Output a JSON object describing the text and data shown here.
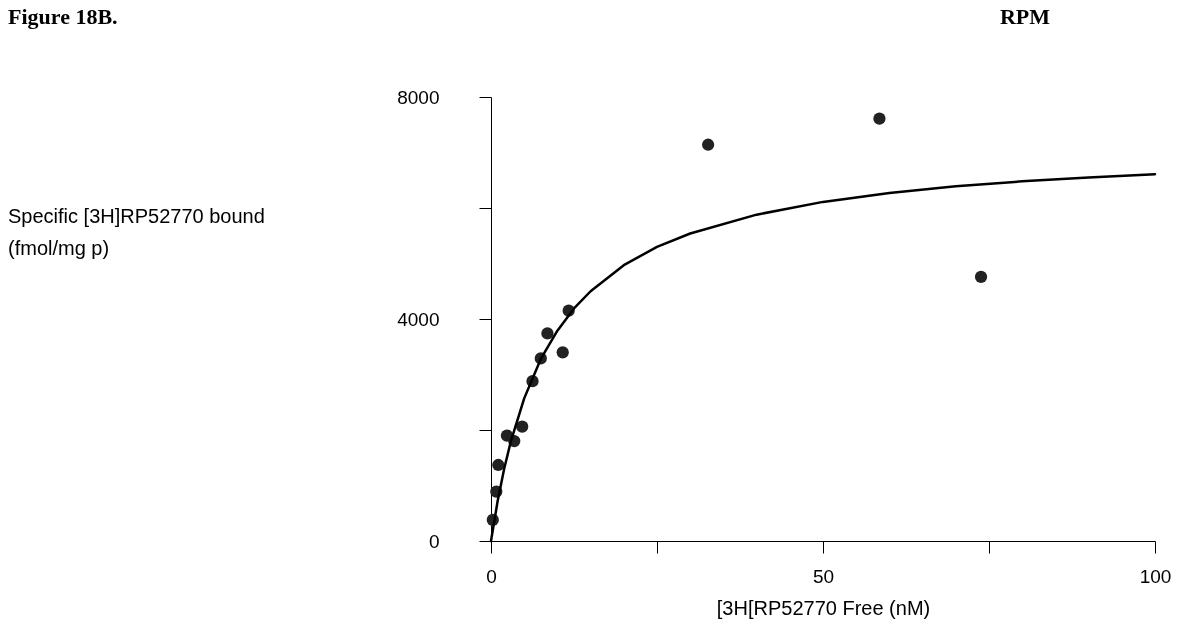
{
  "chart_data": {
    "type": "scatter",
    "title": "Figure 18B.",
    "xlabel": "[3H[RP52770 Free (nM)",
    "annotations": [
      "RPM",
      "Specific [3H]RP52770 bound\n(fmol/mg p)"
    ],
    "xlim": [
      0,
      100
    ],
    "xticks": [
      0,
      {
        "value": 25,
        "label": null
      },
      50,
      {
        "value": 75,
        "label": null
      },
      100
    ],
    "ylim": [
      0,
      8000
    ],
    "yticks": [
      0,
      {
        "value": 2000,
        "label": null
      },
      4000,
      {
        "value": 6000,
        "label": null
      },
      8000
    ],
    "grid": false,
    "marker": "circle",
    "series": [
      {
        "color": "#222222",
        "x": [
          0.27,
          0.8,
          1.1,
          2.4,
          3.5,
          4.7,
          6.25,
          7.5,
          8.5,
          10.8,
          11.7,
          32.7,
          58.5,
          73.8
        ],
        "values": [
          380,
          890,
          1370,
          1900,
          1800,
          2060,
          2880,
          3290,
          3740,
          3400,
          4150,
          7140,
          7610,
          4760
        ]
      },
      {
        "type": "line",
        "color": "#000000",
        "marker": "none",
        "line_style": "solid",
        "x": [
          0,
          1,
          2,
          3,
          5,
          7.5,
          10,
          12.5,
          15,
          20,
          25,
          30,
          40,
          50,
          60,
          70,
          80,
          90,
          100
        ],
        "values": [
          0,
          720,
          1310,
          1800,
          2570,
          3280,
          3790,
          4190,
          4500,
          4970,
          5300,
          5540,
          5880,
          6110,
          6270,
          6390,
          6480,
          6550,
          6610
        ]
      }
    ]
  }
}
